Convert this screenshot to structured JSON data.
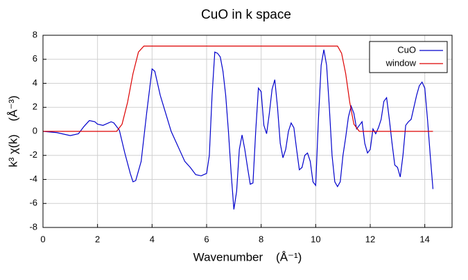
{
  "chart_data": {
    "type": "line",
    "title": "CuO in k space",
    "x_label": "Wavenumber    (Å⁻¹)",
    "y_label": "k³ χ(k)    (Å⁻³)",
    "xlim": [
      0,
      15
    ],
    "ylim": [
      -8,
      8
    ],
    "xticks": [
      0,
      2,
      4,
      6,
      8,
      10,
      12,
      14
    ],
    "yticks": [
      -8,
      -6,
      -4,
      -2,
      0,
      2,
      4,
      6,
      8
    ],
    "grid": true,
    "legend": "upper right",
    "series": [
      {
        "name": "CuO",
        "color": "#0000cc",
        "x": [
          0,
          0.5,
          1.0,
          1.3,
          1.5,
          1.7,
          1.9,
          2.0,
          2.2,
          2.5,
          2.6,
          2.8,
          3.0,
          3.2,
          3.3,
          3.4,
          3.6,
          3.8,
          4.0,
          4.1,
          4.3,
          4.5,
          4.7,
          5.0,
          5.2,
          5.4,
          5.6,
          5.8,
          6.0,
          6.1,
          6.2,
          6.3,
          6.4,
          6.5,
          6.6,
          6.7,
          6.8,
          6.9,
          7.0,
          7.1,
          7.2,
          7.3,
          7.4,
          7.5,
          7.6,
          7.7,
          7.8,
          7.9,
          8.0,
          8.1,
          8.2,
          8.3,
          8.4,
          8.5,
          8.6,
          8.7,
          8.8,
          8.9,
          9.0,
          9.1,
          9.2,
          9.3,
          9.4,
          9.5,
          9.6,
          9.7,
          9.8,
          9.9,
          10.0,
          10.1,
          10.2,
          10.3,
          10.4,
          10.5,
          10.6,
          10.7,
          10.8,
          10.9,
          11.0,
          11.1,
          11.2,
          11.3,
          11.4,
          11.5,
          11.6,
          11.7,
          11.8,
          11.9,
          12.0,
          12.1,
          12.2,
          12.3,
          12.4,
          12.5,
          12.6,
          12.7,
          12.8,
          12.9,
          13.0,
          13.1,
          13.2,
          13.3,
          13.4,
          13.5,
          13.6,
          13.7,
          13.8,
          13.9,
          14.0,
          14.1,
          14.2,
          14.3
        ],
        "values": [
          0,
          -0.1,
          -0.35,
          -0.2,
          0.4,
          0.9,
          0.8,
          0.6,
          0.5,
          0.8,
          0.7,
          0.1,
          -1.8,
          -3.5,
          -4.2,
          -4.1,
          -2.5,
          1.5,
          5.2,
          5.0,
          3,
          1.5,
          0,
          -1.5,
          -2.5,
          -3.0,
          -3.6,
          -3.7,
          -3.5,
          -2,
          3,
          6.6,
          6.5,
          6.2,
          5,
          3,
          0,
          -3.5,
          -6.5,
          -5,
          -1.5,
          -0.3,
          -1.5,
          -3,
          -4.4,
          -4.3,
          0,
          3.6,
          3.3,
          0.5,
          -0.2,
          1.5,
          3.5,
          4.3,
          2,
          -1,
          -2.2,
          -1.5,
          0,
          0.7,
          0.3,
          -1.5,
          -3.2,
          -3.0,
          -2.0,
          -1.8,
          -2.5,
          -4.2,
          -4.5,
          1,
          5.5,
          6.8,
          5.5,
          2,
          -2,
          -4.2,
          -4.6,
          -4.2,
          -2,
          -0.5,
          1.2,
          2.1,
          1.5,
          0.2,
          0.5,
          0.8,
          -1,
          -1.8,
          -1.5,
          0.2,
          -0.2,
          0.3,
          1,
          2.5,
          2.8,
          1,
          -1,
          -2.8,
          -3,
          -3.8,
          -2,
          0.5,
          0.8,
          1,
          2,
          3,
          3.8,
          4.1,
          3.6,
          1,
          -2,
          -4.8
        ]
      },
      {
        "name": "window",
        "color": "#dd0000",
        "x": [
          0,
          2.7,
          2.9,
          3.1,
          3.3,
          3.5,
          3.7,
          10.8,
          10.95,
          11.1,
          11.25,
          11.4,
          11.6,
          14.3
        ],
        "values": [
          0,
          0,
          0.6,
          2.4,
          4.8,
          6.6,
          7.1,
          7.1,
          6.5,
          4.8,
          2.4,
          0.6,
          0,
          0
        ]
      }
    ]
  }
}
